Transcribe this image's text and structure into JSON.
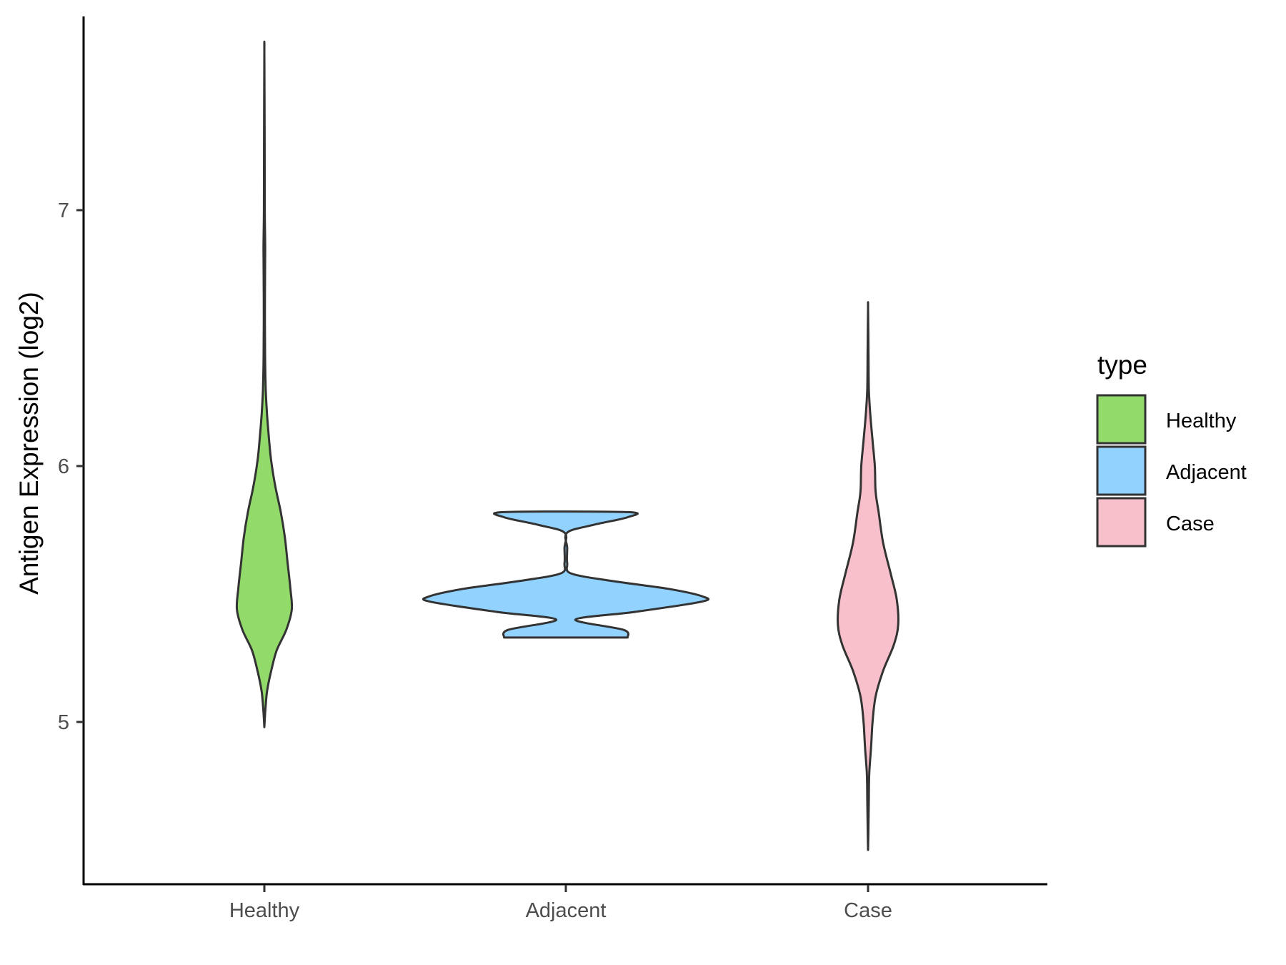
{
  "chart_data": {
    "type": "violin",
    "xlabel": "",
    "ylabel": "Antigen Expression (log2)",
    "y_ticks": [
      5,
      6,
      7
    ],
    "ylim": [
      4.4,
      7.8
    ],
    "grid": false,
    "legend": {
      "title": "type",
      "placement": "right",
      "entries": [
        {
          "label": "Healthy",
          "color": "#92DB6A"
        },
        {
          "label": "Adjacent",
          "color": "#91D2FF"
        },
        {
          "label": "Case",
          "color": "#F7C0CB"
        }
      ]
    },
    "series": [
      {
        "category": "Healthy",
        "color": "#92DB6A",
        "min": 4.98,
        "max": 7.62,
        "density_profile": [
          [
            4.98,
            0.0
          ],
          [
            5.05,
            0.008
          ],
          [
            5.12,
            0.02
          ],
          [
            5.2,
            0.05
          ],
          [
            5.28,
            0.09
          ],
          [
            5.36,
            0.16
          ],
          [
            5.44,
            0.2
          ],
          [
            5.52,
            0.19
          ],
          [
            5.62,
            0.17
          ],
          [
            5.72,
            0.15
          ],
          [
            5.82,
            0.12
          ],
          [
            5.92,
            0.08
          ],
          [
            6.02,
            0.05
          ],
          [
            6.1,
            0.035
          ],
          [
            6.2,
            0.02
          ],
          [
            6.3,
            0.01
          ],
          [
            6.45,
            0.005
          ],
          [
            6.65,
            0.004
          ],
          [
            6.85,
            0.006
          ],
          [
            7.0,
            0.003
          ],
          [
            7.3,
            0.002
          ],
          [
            7.62,
            0.0
          ]
        ]
      },
      {
        "category": "Adjacent",
        "color": "#91D2FF",
        "min": 5.33,
        "max": 5.82,
        "density_profile": [
          [
            5.33,
            0.45
          ],
          [
            5.36,
            0.42
          ],
          [
            5.4,
            0.07
          ],
          [
            5.43,
            0.5
          ],
          [
            5.47,
            0.99
          ],
          [
            5.49,
            1.0
          ],
          [
            5.52,
            0.75
          ],
          [
            5.55,
            0.35
          ],
          [
            5.58,
            0.04
          ],
          [
            5.62,
            0.01
          ],
          [
            5.68,
            0.01
          ],
          [
            5.74,
            0.01
          ],
          [
            5.77,
            0.2
          ],
          [
            5.8,
            0.45
          ],
          [
            5.82,
            0.45
          ]
        ]
      },
      {
        "category": "Case",
        "color": "#F7C0CB",
        "min": 4.5,
        "max": 6.62,
        "density_profile": [
          [
            4.5,
            0.0
          ],
          [
            4.6,
            0.003
          ],
          [
            4.7,
            0.005
          ],
          [
            4.8,
            0.008
          ],
          [
            4.9,
            0.02
          ],
          [
            5.0,
            0.03
          ],
          [
            5.1,
            0.05
          ],
          [
            5.2,
            0.1
          ],
          [
            5.3,
            0.17
          ],
          [
            5.38,
            0.2
          ],
          [
            5.48,
            0.19
          ],
          [
            5.58,
            0.15
          ],
          [
            5.7,
            0.1
          ],
          [
            5.82,
            0.07
          ],
          [
            5.9,
            0.05
          ],
          [
            6.0,
            0.045
          ],
          [
            6.1,
            0.03
          ],
          [
            6.2,
            0.015
          ],
          [
            6.3,
            0.005
          ],
          [
            6.45,
            0.003
          ],
          [
            6.62,
            0.0
          ]
        ]
      }
    ]
  }
}
